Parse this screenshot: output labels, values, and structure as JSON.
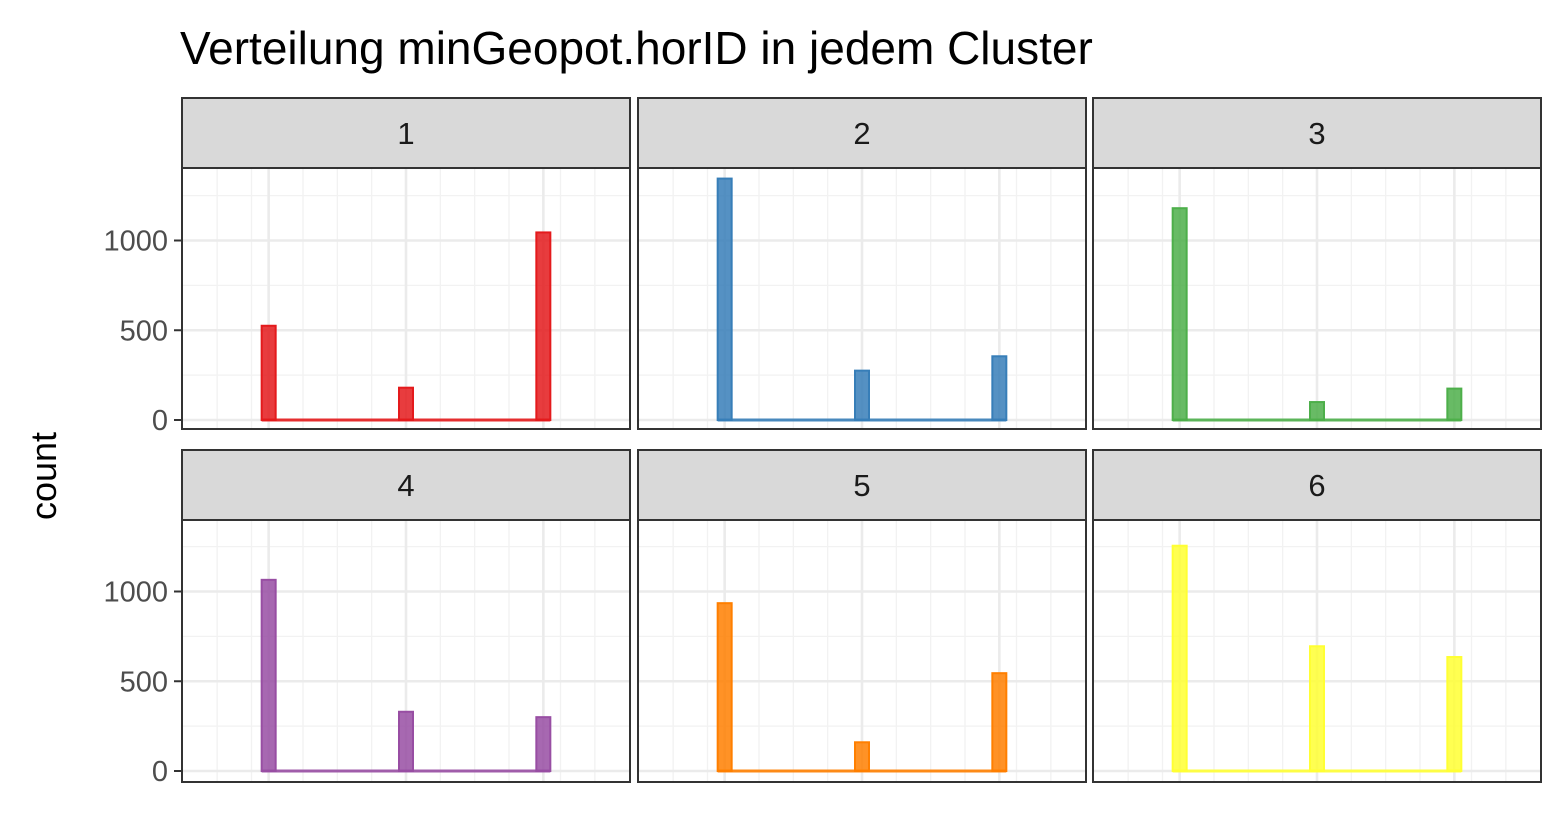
{
  "chart_data": {
    "type": "bar",
    "title": "Verteilung minGeopot.horID in jedem Cluster",
    "xlabel": "",
    "ylabel": "count",
    "facet_layout": "2 rows x 3 columns",
    "shared_y_axis": true,
    "ylim": [
      0,
      1400
    ],
    "yticks": [
      0,
      500,
      1000
    ],
    "xlim": [
      0.5,
      3.5
    ],
    "x": [
      1,
      2,
      3
    ],
    "grid": true,
    "legend": "none",
    "facets": [
      {
        "label": "1",
        "color": "#E41A1C",
        "values": [
          525,
          180,
          1045
        ]
      },
      {
        "label": "2",
        "color": "#377EB8",
        "values": [
          1345,
          275,
          355
        ]
      },
      {
        "label": "3",
        "color": "#4DAF4A",
        "values": [
          1180,
          100,
          175
        ]
      },
      {
        "label": "4",
        "color": "#984EA3",
        "values": [
          1065,
          330,
          300
        ]
      },
      {
        "label": "5",
        "color": "#FF7F00",
        "values": [
          935,
          160,
          545
        ]
      },
      {
        "label": "6",
        "color": "#FFFF33",
        "values": [
          1255,
          695,
          635
        ]
      }
    ]
  }
}
